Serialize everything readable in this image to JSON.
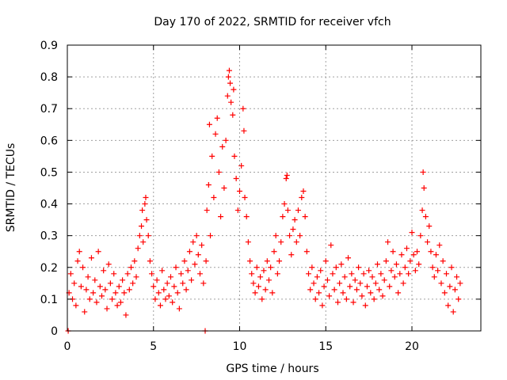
{
  "chart_data": {
    "type": "scatter",
    "title": "Day 170 of 2022, SRMTID for receiver vfch",
    "xlabel": "GPS time / hours",
    "ylabel": "SRMTID / TECUs",
    "xlim": [
      0,
      24
    ],
    "ylim": [
      0,
      0.9
    ],
    "xticks": [
      0,
      5,
      10,
      15,
      20
    ],
    "xtick_labels": [
      "0",
      "5",
      "10",
      "15",
      "20"
    ],
    "yticks": [
      0,
      0.1,
      0.2,
      0.3,
      0.4,
      0.5,
      0.6,
      0.7,
      0.8,
      0.9
    ],
    "ytick_labels": [
      "0",
      "0.1",
      "0.2",
      "0.3",
      "0.4",
      "0.5",
      "0.6",
      "0.7",
      "0.8",
      "0.9"
    ],
    "grid": true,
    "marker": "+",
    "series": [
      {
        "name": "SRMTID",
        "color": "#ff0000",
        "points": [
          [
            0.05,
            0.0
          ],
          [
            0.1,
            0.12
          ],
          [
            0.2,
            0.18
          ],
          [
            0.3,
            0.1
          ],
          [
            0.4,
            0.15
          ],
          [
            0.5,
            0.08
          ],
          [
            0.6,
            0.22
          ],
          [
            0.7,
            0.25
          ],
          [
            0.8,
            0.14
          ],
          [
            0.9,
            0.2
          ],
          [
            1.0,
            0.06
          ],
          [
            1.1,
            0.13
          ],
          [
            1.2,
            0.17
          ],
          [
            1.3,
            0.1
          ],
          [
            1.4,
            0.23
          ],
          [
            1.5,
            0.12
          ],
          [
            1.6,
            0.16
          ],
          [
            1.7,
            0.09
          ],
          [
            1.8,
            0.25
          ],
          [
            1.9,
            0.14
          ],
          [
            2.0,
            0.11
          ],
          [
            2.1,
            0.19
          ],
          [
            2.2,
            0.13
          ],
          [
            2.3,
            0.07
          ],
          [
            2.4,
            0.21
          ],
          [
            2.5,
            0.15
          ],
          [
            2.6,
            0.1
          ],
          [
            2.7,
            0.18
          ],
          [
            2.8,
            0.12
          ],
          [
            2.9,
            0.08
          ],
          [
            3.0,
            0.14
          ],
          [
            3.1,
            0.09
          ],
          [
            3.2,
            0.16
          ],
          [
            3.3,
            0.12
          ],
          [
            3.4,
            0.05
          ],
          [
            3.5,
            0.18
          ],
          [
            3.6,
            0.13
          ],
          [
            3.7,
            0.2
          ],
          [
            3.8,
            0.15
          ],
          [
            3.9,
            0.22
          ],
          [
            4.0,
            0.17
          ],
          [
            4.1,
            0.26
          ],
          [
            4.2,
            0.3
          ],
          [
            4.3,
            0.33
          ],
          [
            4.35,
            0.38
          ],
          [
            4.4,
            0.28
          ],
          [
            4.5,
            0.4
          ],
          [
            4.55,
            0.42
          ],
          [
            4.6,
            0.35
          ],
          [
            4.7,
            0.3
          ],
          [
            4.8,
            0.22
          ],
          [
            4.9,
            0.18
          ],
          [
            5.0,
            0.14
          ],
          [
            5.1,
            0.1
          ],
          [
            5.2,
            0.16
          ],
          [
            5.3,
            0.12
          ],
          [
            5.4,
            0.08
          ],
          [
            5.5,
            0.19
          ],
          [
            5.6,
            0.13
          ],
          [
            5.7,
            0.1
          ],
          [
            5.8,
            0.15
          ],
          [
            5.9,
            0.11
          ],
          [
            6.0,
            0.17
          ],
          [
            6.1,
            0.09
          ],
          [
            6.2,
            0.14
          ],
          [
            6.3,
            0.2
          ],
          [
            6.4,
            0.12
          ],
          [
            6.5,
            0.07
          ],
          [
            6.6,
            0.18
          ],
          [
            6.7,
            0.15
          ],
          [
            6.8,
            0.22
          ],
          [
            6.9,
            0.13
          ],
          [
            7.0,
            0.19
          ],
          [
            7.1,
            0.25
          ],
          [
            7.2,
            0.16
          ],
          [
            7.3,
            0.28
          ],
          [
            7.4,
            0.21
          ],
          [
            7.5,
            0.3
          ],
          [
            7.6,
            0.24
          ],
          [
            7.7,
            0.18
          ],
          [
            7.8,
            0.27
          ],
          [
            7.9,
            0.15
          ],
          [
            8.0,
            0.0
          ],
          [
            8.05,
            0.22
          ],
          [
            8.1,
            0.38
          ],
          [
            8.2,
            0.46
          ],
          [
            8.25,
            0.65
          ],
          [
            8.3,
            0.3
          ],
          [
            8.4,
            0.55
          ],
          [
            8.5,
            0.42
          ],
          [
            8.6,
            0.62
          ],
          [
            8.7,
            0.67
          ],
          [
            8.8,
            0.5
          ],
          [
            8.9,
            0.36
          ],
          [
            9.0,
            0.58
          ],
          [
            9.1,
            0.45
          ],
          [
            9.2,
            0.6
          ],
          [
            9.3,
            0.74
          ],
          [
            9.35,
            0.8
          ],
          [
            9.4,
            0.82
          ],
          [
            9.45,
            0.78
          ],
          [
            9.5,
            0.72
          ],
          [
            9.6,
            0.68
          ],
          [
            9.65,
            0.76
          ],
          [
            9.7,
            0.55
          ],
          [
            9.8,
            0.48
          ],
          [
            9.9,
            0.38
          ],
          [
            10.0,
            0.44
          ],
          [
            10.1,
            0.52
          ],
          [
            10.2,
            0.7
          ],
          [
            10.25,
            0.63
          ],
          [
            10.3,
            0.42
          ],
          [
            10.4,
            0.36
          ],
          [
            10.5,
            0.28
          ],
          [
            10.6,
            0.22
          ],
          [
            10.7,
            0.18
          ],
          [
            10.8,
            0.15
          ],
          [
            10.9,
            0.12
          ],
          [
            11.0,
            0.2
          ],
          [
            11.1,
            0.14
          ],
          [
            11.2,
            0.17
          ],
          [
            11.3,
            0.1
          ],
          [
            11.4,
            0.19
          ],
          [
            11.5,
            0.13
          ],
          [
            11.6,
            0.22
          ],
          [
            11.7,
            0.16
          ],
          [
            11.8,
            0.2
          ],
          [
            11.9,
            0.12
          ],
          [
            12.0,
            0.25
          ],
          [
            12.1,
            0.3
          ],
          [
            12.2,
            0.18
          ],
          [
            12.3,
            0.22
          ],
          [
            12.4,
            0.28
          ],
          [
            12.5,
            0.36
          ],
          [
            12.6,
            0.4
          ],
          [
            12.7,
            0.48
          ],
          [
            12.75,
            0.49
          ],
          [
            12.8,
            0.38
          ],
          [
            12.9,
            0.3
          ],
          [
            13.0,
            0.24
          ],
          [
            13.1,
            0.32
          ],
          [
            13.2,
            0.35
          ],
          [
            13.3,
            0.28
          ],
          [
            13.4,
            0.38
          ],
          [
            13.5,
            0.3
          ],
          [
            13.6,
            0.42
          ],
          [
            13.7,
            0.44
          ],
          [
            13.8,
            0.36
          ],
          [
            13.9,
            0.25
          ],
          [
            14.0,
            0.18
          ],
          [
            14.1,
            0.13
          ],
          [
            14.2,
            0.2
          ],
          [
            14.3,
            0.15
          ],
          [
            14.4,
            0.1
          ],
          [
            14.5,
            0.17
          ],
          [
            14.6,
            0.12
          ],
          [
            14.7,
            0.19
          ],
          [
            14.8,
            0.08
          ],
          [
            14.9,
            0.14
          ],
          [
            15.0,
            0.22
          ],
          [
            15.1,
            0.16
          ],
          [
            15.2,
            0.11
          ],
          [
            15.3,
            0.27
          ],
          [
            15.4,
            0.18
          ],
          [
            15.5,
            0.13
          ],
          [
            15.6,
            0.2
          ],
          [
            15.7,
            0.09
          ],
          [
            15.8,
            0.15
          ],
          [
            15.9,
            0.21
          ],
          [
            16.0,
            0.12
          ],
          [
            16.1,
            0.17
          ],
          [
            16.2,
            0.1
          ],
          [
            16.3,
            0.23
          ],
          [
            16.4,
            0.14
          ],
          [
            16.5,
            0.18
          ],
          [
            16.6,
            0.09
          ],
          [
            16.7,
            0.16
          ],
          [
            16.8,
            0.13
          ],
          [
            16.9,
            0.2
          ],
          [
            17.0,
            0.15
          ],
          [
            17.1,
            0.11
          ],
          [
            17.2,
            0.18
          ],
          [
            17.3,
            0.08
          ],
          [
            17.4,
            0.14
          ],
          [
            17.5,
            0.19
          ],
          [
            17.6,
            0.12
          ],
          [
            17.7,
            0.17
          ],
          [
            17.8,
            0.1
          ],
          [
            17.9,
            0.15
          ],
          [
            18.0,
            0.21
          ],
          [
            18.1,
            0.13
          ],
          [
            18.2,
            0.18
          ],
          [
            18.3,
            0.11
          ],
          [
            18.4,
            0.16
          ],
          [
            18.5,
            0.22
          ],
          [
            18.6,
            0.28
          ],
          [
            18.7,
            0.14
          ],
          [
            18.8,
            0.19
          ],
          [
            18.9,
            0.25
          ],
          [
            19.0,
            0.17
          ],
          [
            19.1,
            0.21
          ],
          [
            19.2,
            0.12
          ],
          [
            19.3,
            0.18
          ],
          [
            19.4,
            0.24
          ],
          [
            19.5,
            0.15
          ],
          [
            19.6,
            0.2
          ],
          [
            19.7,
            0.26
          ],
          [
            19.8,
            0.18
          ],
          [
            19.9,
            0.22
          ],
          [
            20.0,
            0.31
          ],
          [
            20.1,
            0.24
          ],
          [
            20.2,
            0.19
          ],
          [
            20.3,
            0.25
          ],
          [
            20.4,
            0.21
          ],
          [
            20.5,
            0.3
          ],
          [
            20.6,
            0.38
          ],
          [
            20.65,
            0.5
          ],
          [
            20.7,
            0.45
          ],
          [
            20.8,
            0.36
          ],
          [
            20.9,
            0.28
          ],
          [
            21.0,
            0.33
          ],
          [
            21.1,
            0.25
          ],
          [
            21.2,
            0.2
          ],
          [
            21.3,
            0.17
          ],
          [
            21.4,
            0.24
          ],
          [
            21.5,
            0.19
          ],
          [
            21.6,
            0.27
          ],
          [
            21.7,
            0.15
          ],
          [
            21.8,
            0.22
          ],
          [
            21.9,
            0.12
          ],
          [
            22.0,
            0.18
          ],
          [
            22.1,
            0.08
          ],
          [
            22.2,
            0.14
          ],
          [
            22.3,
            0.2
          ],
          [
            22.4,
            0.06
          ],
          [
            22.5,
            0.13
          ],
          [
            22.6,
            0.17
          ],
          [
            22.7,
            0.1
          ],
          [
            22.8,
            0.15
          ]
        ]
      }
    ]
  }
}
